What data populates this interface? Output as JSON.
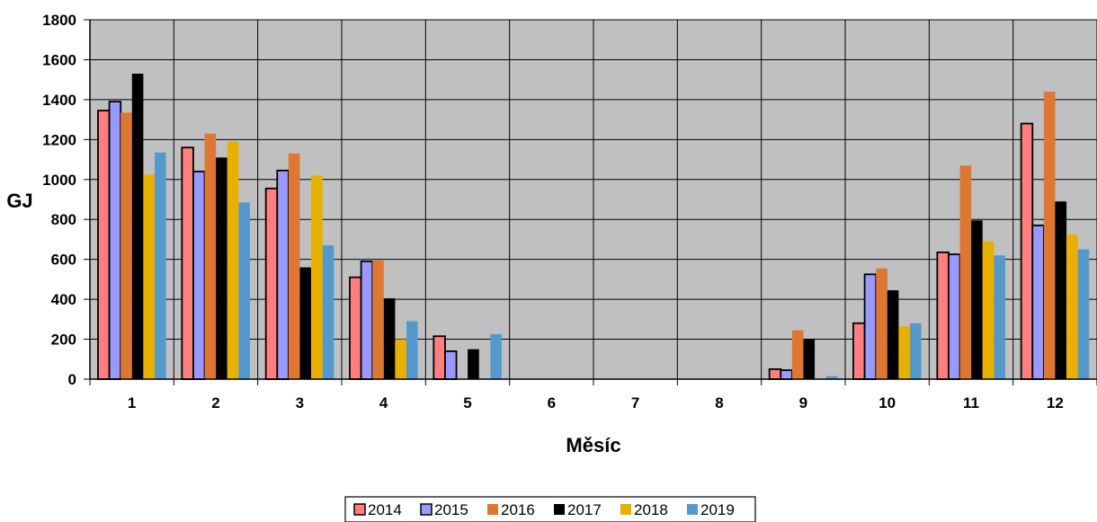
{
  "chart_data": {
    "type": "bar",
    "title": "",
    "xlabel": "Měsíc",
    "ylabel": "GJ",
    "ylim": [
      0,
      1800
    ],
    "yticks": [
      0,
      200,
      400,
      600,
      800,
      1000,
      1200,
      1400,
      1600,
      1800
    ],
    "categories": [
      "1",
      "2",
      "3",
      "4",
      "5",
      "6",
      "7",
      "8",
      "9",
      "10",
      "11",
      "12"
    ],
    "grid": true,
    "legend_position": "bottom",
    "series": [
      {
        "name": "2014",
        "color": "#ff7f7f",
        "outline": true,
        "values": [
          1345,
          1160,
          955,
          510,
          215,
          0,
          0,
          0,
          50,
          280,
          635,
          1280
        ]
      },
      {
        "name": "2015",
        "color": "#9999ff",
        "outline": true,
        "values": [
          1390,
          1040,
          1045,
          590,
          140,
          0,
          0,
          0,
          45,
          525,
          625,
          770
        ]
      },
      {
        "name": "2016",
        "color": "#dd7733",
        "outline": false,
        "values": [
          1335,
          1230,
          1130,
          595,
          0,
          0,
          0,
          0,
          245,
          555,
          1070,
          1440
        ]
      },
      {
        "name": "2017",
        "color": "#000000",
        "outline": false,
        "values": [
          1530,
          1110,
          560,
          405,
          150,
          0,
          0,
          0,
          200,
          445,
          795,
          890
        ]
      },
      {
        "name": "2018",
        "color": "#e8b000",
        "outline": false,
        "values": [
          1025,
          1190,
          1020,
          200,
          0,
          0,
          0,
          0,
          0,
          265,
          690,
          725
        ]
      },
      {
        "name": "2019",
        "color": "#5599cc",
        "outline": false,
        "values": [
          1135,
          885,
          670,
          290,
          225,
          0,
          0,
          0,
          15,
          280,
          620,
          650
        ]
      }
    ]
  }
}
